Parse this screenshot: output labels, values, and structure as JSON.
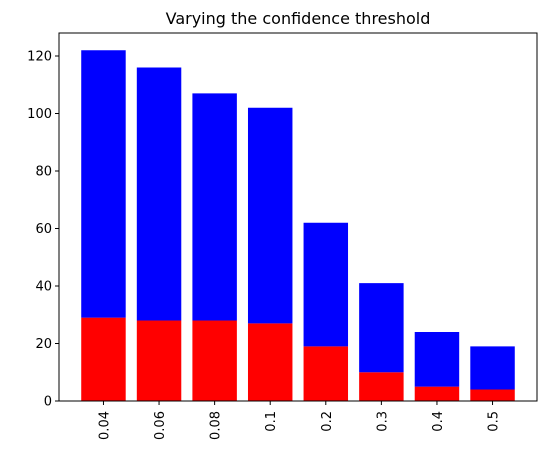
{
  "chart_data": {
    "type": "bar",
    "stacked": true,
    "title": "Varying the confidence threshold",
    "xlabel": "",
    "ylabel": "",
    "categories": [
      "0.04",
      "0.06",
      "0.08",
      "0.1",
      "0.2",
      "0.3",
      "0.4",
      "0.5"
    ],
    "series": [
      {
        "color": "#ff0000",
        "values": [
          29,
          28,
          28,
          27,
          19,
          10,
          5,
          4
        ]
      },
      {
        "color": "#0000ff",
        "values": [
          93,
          88,
          79,
          75,
          43,
          31,
          19,
          15
        ]
      }
    ],
    "totals": [
      122,
      116,
      107,
      102,
      62,
      41,
      24,
      19
    ],
    "ylim": [
      0,
      128
    ],
    "yticks": [
      0,
      20,
      40,
      60,
      80,
      100,
      120
    ],
    "grid": false,
    "legend": "none",
    "x_tick_rotation": 90
  }
}
